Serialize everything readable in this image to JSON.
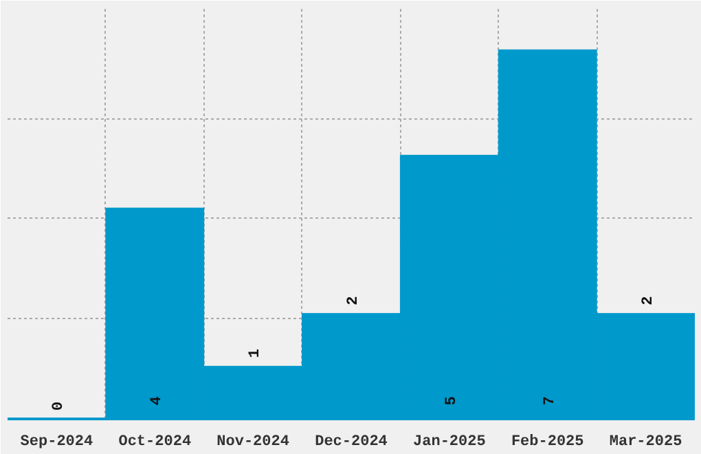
{
  "chart_data": {
    "type": "bar",
    "categories": [
      "Sep-2024",
      "Oct-2024",
      "Nov-2024",
      "Dec-2024",
      "Jan-2025",
      "Feb-2025",
      "Mar-2025"
    ],
    "values": [
      0,
      4,
      1,
      2,
      5,
      7,
      2
    ],
    "color": "#0099cc",
    "ylim": [
      0,
      7.8
    ],
    "yticks": [
      {
        "value": 1.9,
        "label": null
      },
      {
        "value": 3.8,
        "label": null
      },
      {
        "value": 5.7,
        "label": null
      }
    ],
    "tick_labels": "x",
    "grid": true,
    "data_labels": true
  }
}
